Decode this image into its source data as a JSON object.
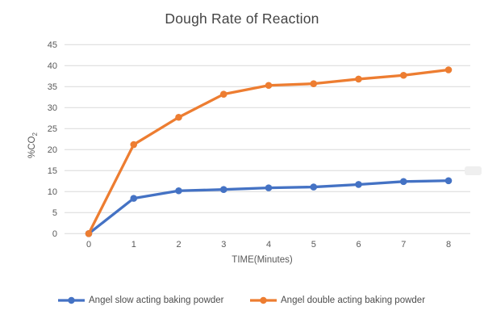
{
  "title": "Dough Rate of Reaction",
  "colors": {
    "series_slow": "#4472C4",
    "series_double": "#ED7D31",
    "gridline": "#D9D9D9",
    "tick_text": "#595959",
    "title_text": "#444444"
  },
  "chart_data": {
    "type": "line",
    "title": "Dough Rate of Reaction",
    "xlabel": "TIME(Minutes)",
    "ylabel": "%CO2",
    "ylabel_main": "%CO",
    "ylabel_sub": "2",
    "x": [
      0,
      1,
      2,
      3,
      4,
      5,
      6,
      7,
      8
    ],
    "xlim": [
      0,
      8
    ],
    "ylim": [
      0,
      45
    ],
    "ytick_step": 5,
    "yticks": [
      0,
      5,
      10,
      15,
      20,
      25,
      30,
      35,
      40,
      45
    ],
    "grid": true,
    "legend_position": "bottom",
    "marker": "circle",
    "series": [
      {
        "name": "Angel slow acting baking powder",
        "color": "#4472C4",
        "values": [
          0,
          8.4,
          10.2,
          10.5,
          10.9,
          11.1,
          11.7,
          12.4,
          12.6
        ]
      },
      {
        "name": "Angel double acting baking powder",
        "color": "#ED7D31",
        "values": [
          0,
          21.2,
          27.7,
          33.2,
          35.3,
          35.7,
          36.8,
          37.7,
          39.0
        ]
      }
    ]
  }
}
